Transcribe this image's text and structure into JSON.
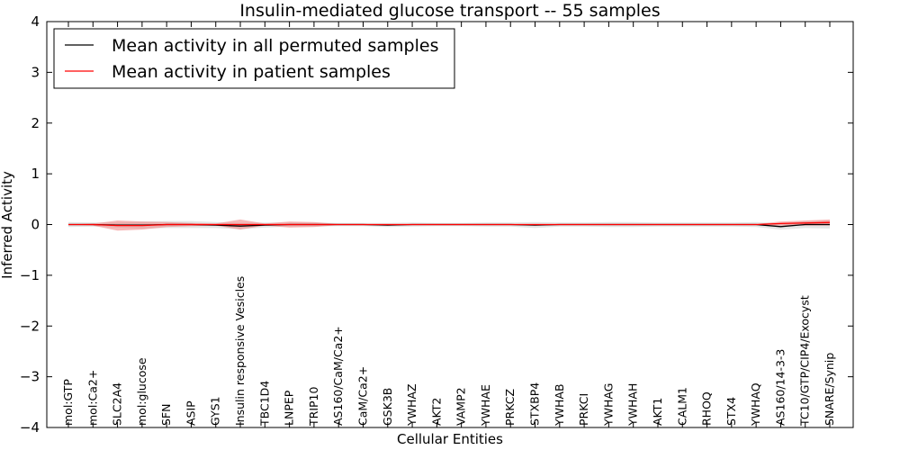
{
  "chart_data": {
    "type": "line",
    "title": "Insulin-mediated glucose transport -- 55 samples",
    "xlabel": "Cellular Entities",
    "ylabel": "Inferred Activity",
    "ylim": [
      -4,
      4
    ],
    "yticks": [
      -4,
      -3,
      -2,
      -1,
      0,
      1,
      2,
      3,
      4
    ],
    "ytick_labels": [
      "−4",
      "−3",
      "−2",
      "−1",
      "0",
      "1",
      "2",
      "3",
      "4"
    ],
    "grid": false,
    "legend_position": "top-left",
    "categories": [
      "mol:GTP",
      "mol:Ca2+",
      "SLC2A4",
      "mol:glucose",
      "SFN",
      "ASIP",
      "GYS1",
      "Insulin responsive Vesicles",
      "TBC1D4",
      "LNPEP",
      "TRIP10",
      "AS160/CaM/Ca2+",
      "CaM/Ca2+",
      "GSK3B",
      "YWHAZ",
      "AKT2",
      "VAMP2",
      "YWHAE",
      "PRKCZ",
      "STXBP4",
      "YWHAB",
      "PRKCI",
      "YWHAG",
      "YWHAH",
      "AKT1",
      "CALM1",
      "RHOQ",
      "STX4",
      "YWHAQ",
      "AS160/14-3-3",
      "TC10/GTP/CIP4/Exocyst",
      "SNARE/Synip"
    ],
    "series": [
      {
        "name": "Mean activity in all permuted samples",
        "color": "#000000",
        "band_color": "#d3d3d3",
        "values": [
          0.0,
          0.0,
          -0.01,
          -0.01,
          0.0,
          0.0,
          -0.01,
          -0.03,
          -0.01,
          0.0,
          0.0,
          0.0,
          0.0,
          -0.01,
          0.0,
          0.0,
          0.0,
          0.0,
          0.0,
          -0.01,
          0.0,
          0.0,
          0.0,
          0.0,
          0.0,
          0.0,
          0.0,
          0.0,
          0.0,
          -0.04,
          0.0,
          0.0
        ],
        "band": [
          0.05,
          0.04,
          0.05,
          0.07,
          0.07,
          0.07,
          0.06,
          0.06,
          0.05,
          0.04,
          0.04,
          0.03,
          0.03,
          0.04,
          0.04,
          0.03,
          0.03,
          0.04,
          0.04,
          0.06,
          0.04,
          0.04,
          0.05,
          0.05,
          0.04,
          0.04,
          0.04,
          0.04,
          0.05,
          0.06,
          0.07,
          0.08
        ]
      },
      {
        "name": "Mean activity in patient samples",
        "color": "#ff0000",
        "band_color": "#f08080",
        "values": [
          0.0,
          0.0,
          -0.02,
          -0.02,
          0.0,
          0.0,
          0.0,
          0.0,
          0.0,
          0.0,
          0.0,
          0.0,
          0.0,
          0.0,
          0.0,
          0.0,
          0.0,
          0.0,
          0.0,
          0.0,
          0.0,
          0.0,
          0.0,
          0.0,
          0.0,
          0.0,
          0.0,
          0.0,
          0.0,
          0.02,
          0.03,
          0.04
        ],
        "band": [
          0.0,
          0.02,
          0.1,
          0.08,
          0.05,
          0.03,
          0.02,
          0.1,
          0.02,
          0.06,
          0.05,
          0.01,
          0.01,
          0.01,
          0.01,
          0.01,
          0.01,
          0.01,
          0.01,
          0.01,
          0.01,
          0.01,
          0.01,
          0.01,
          0.01,
          0.01,
          0.01,
          0.01,
          0.01,
          0.04,
          0.05,
          0.06
        ]
      }
    ]
  }
}
